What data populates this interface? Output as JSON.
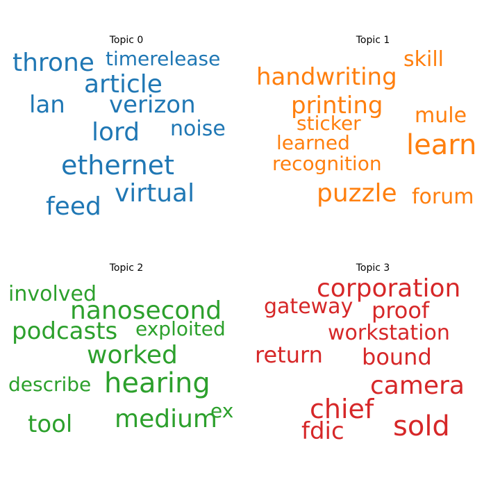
{
  "chart_data": {
    "type": "wordcloud",
    "topics": [
      {
        "title": "Topic 0",
        "color": "#1f77b4",
        "words": [
          "throne",
          "timerelease",
          "article",
          "lan",
          "verizon",
          "lord",
          "noise",
          "ethernet",
          "virtual",
          "feed"
        ]
      },
      {
        "title": "Topic 1",
        "color": "#ff7f0e",
        "words": [
          "skill",
          "handwriting",
          "printing",
          "mule",
          "sticker",
          "learn",
          "learned",
          "recognition",
          "puzzle",
          "forum"
        ]
      },
      {
        "title": "Topic 2",
        "color": "#2ca02c",
        "words": [
          "involved",
          "nanosecond",
          "podcasts",
          "exploited",
          "worked",
          "describe",
          "hearing",
          "ex",
          "tool",
          "medium"
        ]
      },
      {
        "title": "Topic 3",
        "color": "#d62728",
        "words": [
          "corporation",
          "gateway",
          "proof",
          "workstation",
          "return",
          "bound",
          "camera",
          "chief",
          "sold",
          "fdic"
        ]
      }
    ]
  }
}
